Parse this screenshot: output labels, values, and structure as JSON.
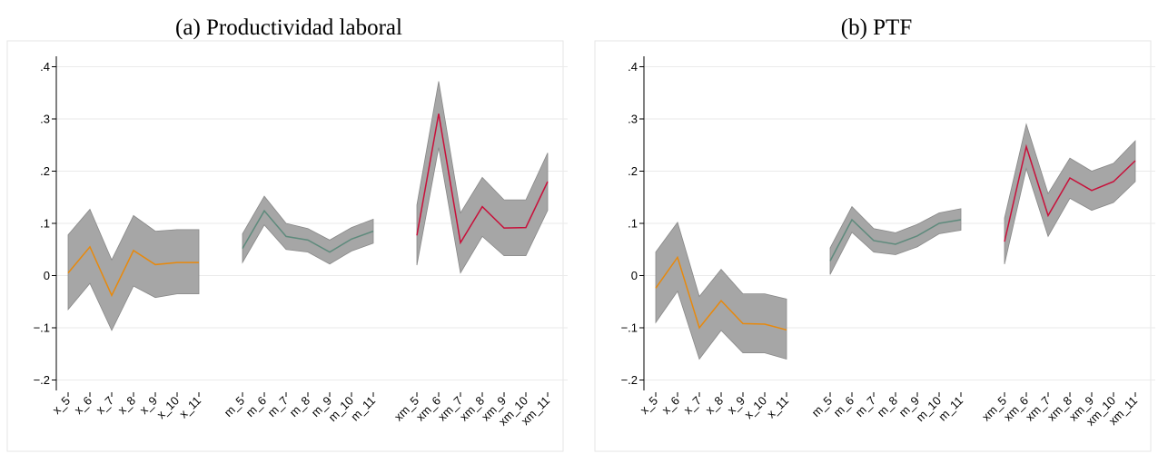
{
  "chart_data": [
    {
      "type": "line",
      "title": "(a) Productividad laboral",
      "categories": [
        "x_5",
        "x_6",
        "x_7",
        "x_8",
        "x_9",
        "x_10",
        "x_11",
        null,
        "m_5",
        "m_6",
        "m_7",
        "m_8",
        "m_9",
        "m_10",
        "m_11",
        null,
        "xm_5",
        "xm_6",
        "xm_7",
        "xm_8",
        "xm_9",
        "xm_10",
        "xm_11"
      ],
      "ylim": [
        -0.22,
        0.42
      ],
      "yticks": [
        {
          "value": 0.4,
          "label": ".4"
        },
        {
          "value": 0.3,
          "label": ".3"
        },
        {
          "value": 0.2,
          "label": ".2"
        },
        {
          "value": 0.1,
          "label": ".1"
        },
        0,
        {
          "value": -0.1,
          "label": "−.1"
        },
        {
          "value": -0.2,
          "label": "−.2"
        }
      ],
      "grid": true,
      "band_color": "#a6a6a6",
      "series": [
        {
          "color": "#e8890c",
          "values": [
            0.005,
            0.055,
            -0.038,
            0.048,
            0.021,
            0.025,
            0.025,
            null,
            null,
            null,
            null,
            null,
            null,
            null,
            null,
            null,
            null,
            null,
            null,
            null,
            null,
            null,
            null
          ],
          "lower": [
            -0.065,
            -0.015,
            -0.105,
            -0.02,
            -0.042,
            -0.035,
            -0.035,
            null,
            null,
            null,
            null,
            null,
            null,
            null,
            null,
            null,
            null,
            null,
            null,
            null,
            null,
            null,
            null
          ],
          "upper": [
            0.078,
            0.127,
            0.03,
            0.115,
            0.085,
            0.088,
            0.088,
            null,
            null,
            null,
            null,
            null,
            null,
            null,
            null,
            null,
            null,
            null,
            null,
            null,
            null,
            null,
            null
          ]
        },
        {
          "color": "#5e8a7c",
          "values": [
            null,
            null,
            null,
            null,
            null,
            null,
            null,
            null,
            0.052,
            0.124,
            0.075,
            0.068,
            0.045,
            0.07,
            0.085,
            null,
            null,
            null,
            null,
            null,
            null,
            null,
            null
          ],
          "lower": [
            null,
            null,
            null,
            null,
            null,
            null,
            null,
            null,
            0.025,
            0.097,
            0.05,
            0.045,
            0.022,
            0.047,
            0.062,
            null,
            null,
            null,
            null,
            null,
            null,
            null,
            null
          ],
          "upper": [
            null,
            null,
            null,
            null,
            null,
            null,
            null,
            null,
            0.08,
            0.152,
            0.1,
            0.09,
            0.068,
            0.092,
            0.108,
            null,
            null,
            null,
            null,
            null,
            null,
            null,
            null
          ]
        },
        {
          "color": "#c8103a",
          "values": [
            null,
            null,
            null,
            null,
            null,
            null,
            null,
            null,
            null,
            null,
            null,
            null,
            null,
            null,
            null,
            null,
            0.077,
            0.31,
            0.063,
            0.132,
            0.091,
            0.092,
            0.18
          ],
          "lower": [
            null,
            null,
            null,
            null,
            null,
            null,
            null,
            null,
            null,
            null,
            null,
            null,
            null,
            null,
            null,
            null,
            0.02,
            0.245,
            0.005,
            0.075,
            0.038,
            0.038,
            0.125
          ],
          "upper": [
            null,
            null,
            null,
            null,
            null,
            null,
            null,
            null,
            null,
            null,
            null,
            null,
            null,
            null,
            null,
            null,
            0.135,
            0.372,
            0.12,
            0.188,
            0.145,
            0.145,
            0.235
          ]
        }
      ]
    },
    {
      "type": "line",
      "title": "(b) PTF",
      "categories": [
        "x_5",
        "x_6",
        "x_7",
        "x_8",
        "x_9",
        "x_10",
        "x_11",
        null,
        "m_5",
        "m_6",
        "m_7",
        "m_8",
        "m_9",
        "m_10",
        "m_11",
        null,
        "xm_5",
        "xm_6",
        "xm_7",
        "xm_8",
        "xm_9",
        "xm_10",
        "xm_11"
      ],
      "ylim": [
        -0.22,
        0.42
      ],
      "yticks": [
        {
          "value": 0.4,
          "label": ".4"
        },
        {
          "value": 0.3,
          "label": ".3"
        },
        {
          "value": 0.2,
          "label": ".2"
        },
        {
          "value": 0.1,
          "label": ".1"
        },
        0,
        {
          "value": -0.1,
          "label": "−.1"
        },
        {
          "value": -0.2,
          "label": "−.2"
        }
      ],
      "grid": true,
      "band_color": "#a6a6a6",
      "series": [
        {
          "color": "#e8890c",
          "values": [
            -0.024,
            0.035,
            -0.1,
            -0.048,
            -0.092,
            -0.093,
            -0.104,
            null,
            null,
            null,
            null,
            null,
            null,
            null,
            null,
            null,
            null,
            null,
            null,
            null,
            null,
            null,
            null
          ],
          "lower": [
            -0.09,
            -0.03,
            -0.16,
            -0.105,
            -0.148,
            -0.148,
            -0.16,
            null,
            null,
            null,
            null,
            null,
            null,
            null,
            null,
            null,
            null,
            null,
            null,
            null,
            null,
            null,
            null
          ],
          "upper": [
            0.045,
            0.102,
            -0.04,
            0.012,
            -0.035,
            -0.035,
            -0.045,
            null,
            null,
            null,
            null,
            null,
            null,
            null,
            null,
            null,
            null,
            null,
            null,
            null,
            null,
            null,
            null
          ]
        },
        {
          "color": "#5e8a7c",
          "values": [
            null,
            null,
            null,
            null,
            null,
            null,
            null,
            null,
            0.028,
            0.107,
            0.067,
            0.06,
            0.076,
            0.1,
            0.107,
            null,
            null,
            null,
            null,
            null,
            null,
            null,
            null
          ],
          "lower": [
            null,
            null,
            null,
            null,
            null,
            null,
            null,
            null,
            0.002,
            0.083,
            0.045,
            0.04,
            0.055,
            0.08,
            0.087,
            null,
            null,
            null,
            null,
            null,
            null,
            null,
            null
          ],
          "upper": [
            null,
            null,
            null,
            null,
            null,
            null,
            null,
            null,
            0.053,
            0.132,
            0.09,
            0.082,
            0.098,
            0.12,
            0.128,
            null,
            null,
            null,
            null,
            null,
            null,
            null,
            null
          ]
        },
        {
          "color": "#c8103a",
          "values": [
            null,
            null,
            null,
            null,
            null,
            null,
            null,
            null,
            null,
            null,
            null,
            null,
            null,
            null,
            null,
            null,
            0.065,
            0.247,
            0.115,
            0.187,
            0.163,
            0.18,
            0.22
          ],
          "lower": [
            null,
            null,
            null,
            null,
            null,
            null,
            null,
            null,
            null,
            null,
            null,
            null,
            null,
            null,
            null,
            null,
            0.022,
            0.205,
            0.075,
            0.148,
            0.125,
            0.14,
            0.18
          ],
          "upper": [
            null,
            null,
            null,
            null,
            null,
            null,
            null,
            null,
            null,
            null,
            null,
            null,
            null,
            null,
            null,
            null,
            0.11,
            0.29,
            0.157,
            0.225,
            0.2,
            0.215,
            0.258
          ]
        }
      ]
    }
  ]
}
